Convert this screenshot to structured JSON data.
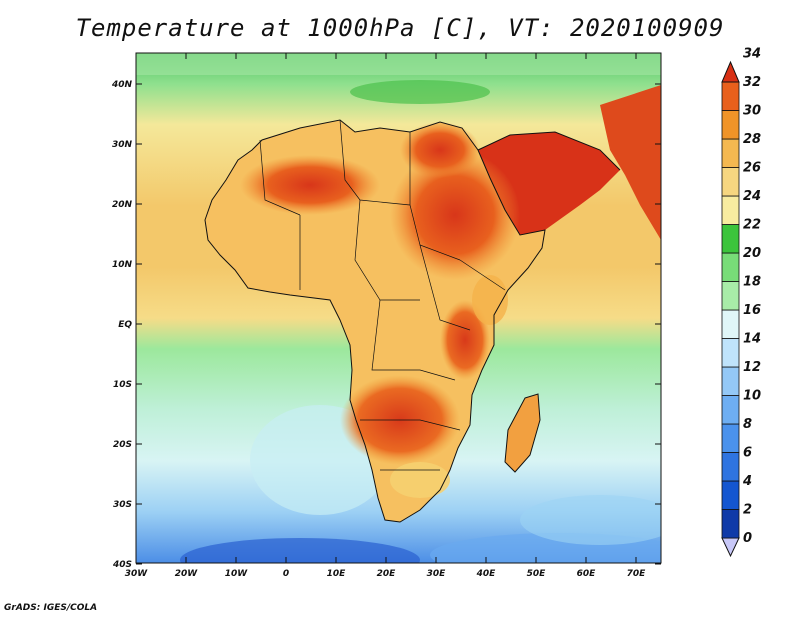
{
  "title": "Temperature at 1000hPa [C], VT: 2020100909",
  "credit": "GrADS: IGES/COLA",
  "map": {
    "x_ticks": [
      "30W",
      "20W",
      "10W",
      "0",
      "10E",
      "20E",
      "30E",
      "40E",
      "50E",
      "60E",
      "70E"
    ],
    "y_ticks": [
      "40N",
      "30N",
      "20N",
      "10N",
      "EQ",
      "10S",
      "20S",
      "30S",
      "40S"
    ],
    "lon_range": [
      -30,
      75
    ],
    "lat_range": [
      -40,
      45
    ]
  },
  "colorbar": {
    "levels": [
      "0",
      "2",
      "4",
      "6",
      "8",
      "10",
      "12",
      "14",
      "16",
      "18",
      "20",
      "22",
      "24",
      "26",
      "28",
      "30",
      "32",
      "34"
    ],
    "colors": [
      "#0a1a78",
      "#0f3aa8",
      "#1456d0",
      "#2f74e0",
      "#4b92ec",
      "#6eaef2",
      "#94c8f6",
      "#bfe3fb",
      "#e0f6f8",
      "#a8eca8",
      "#78dc78",
      "#3cc43c",
      "#f8eca0",
      "#f6d680",
      "#f4b850",
      "#f09428",
      "#e8601c",
      "#d83014"
    ]
  }
}
